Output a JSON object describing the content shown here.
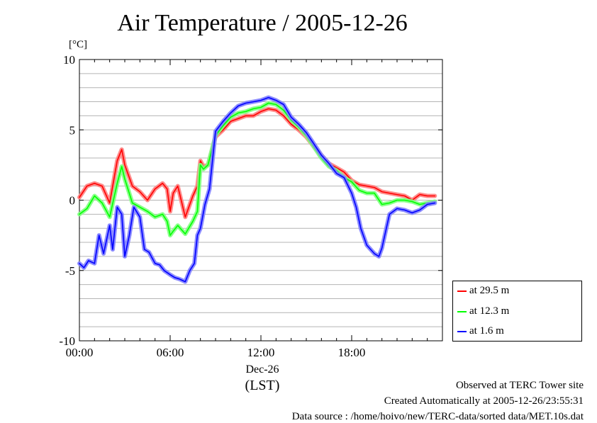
{
  "chart_data": {
    "type": "line",
    "title": "Air Temperature / 2005-12-26",
    "ylabel": "[°C]",
    "xlabel": "(LST)",
    "date_label": "Dec-26",
    "xlim": [
      0,
      24
    ],
    "ylim": [
      -10,
      10
    ],
    "y_ticks": [
      "10",
      "5",
      "0",
      "-5",
      "-10"
    ],
    "y_tick_values": [
      10,
      5,
      0,
      -5,
      -10
    ],
    "x_ticks": [
      "00:00",
      "06:00",
      "12:00",
      "18:00"
    ],
    "x_tick_values": [
      0,
      6,
      12,
      18
    ],
    "grid": true,
    "legend_position": "lower-right outside",
    "series": [
      {
        "name": "at 29.5 m",
        "color": "#ff0000",
        "x": [
          0,
          0.5,
          1,
          1.5,
          2,
          2.5,
          2.8,
          3,
          3.5,
          4,
          4.5,
          5,
          5.5,
          5.8,
          6,
          6.2,
          6.5,
          7,
          7.5,
          7.8,
          8,
          8.2,
          8.5,
          9,
          9.5,
          10,
          10.5,
          11,
          11.5,
          12,
          12.5,
          13,
          13.5,
          14,
          14.5,
          15,
          15.5,
          16,
          16.5,
          17,
          17.5,
          18,
          18.5,
          19,
          19.5,
          20,
          20.5,
          21,
          21.5,
          22,
          22.5,
          23,
          23.5
        ],
        "y": [
          0.2,
          1.0,
          1.2,
          1.0,
          -0.2,
          2.8,
          3.6,
          2.5,
          1.0,
          0.6,
          0.0,
          0.8,
          1.2,
          0.8,
          -0.8,
          0.5,
          1.0,
          -1.2,
          0.3,
          1.0,
          2.8,
          2.4,
          2.5,
          4.5,
          5.0,
          5.6,
          5.8,
          6.0,
          6.0,
          6.3,
          6.5,
          6.4,
          6.0,
          5.4,
          5.0,
          4.5,
          3.8,
          3.2,
          2.6,
          2.3,
          2.0,
          1.4,
          1.1,
          1.0,
          0.9,
          0.6,
          0.5,
          0.4,
          0.3,
          0.0,
          0.4,
          0.3,
          0.3
        ]
      },
      {
        "name": "at 12.3 m",
        "color": "#00ff00",
        "x": [
          0,
          0.5,
          1,
          1.5,
          2,
          2.5,
          2.8,
          3,
          3.5,
          4,
          4.5,
          5,
          5.5,
          5.8,
          6,
          6.2,
          6.5,
          7,
          7.5,
          7.8,
          8,
          8.2,
          8.5,
          9,
          9.5,
          10,
          10.5,
          11,
          11.5,
          12,
          12.5,
          13,
          13.5,
          14,
          14.5,
          15,
          15.5,
          16,
          16.5,
          17,
          17.5,
          18,
          18.5,
          19,
          19.5,
          20,
          20.5,
          21,
          21.5,
          22,
          22.5,
          23,
          23.5
        ],
        "y": [
          -1.0,
          -0.6,
          0.3,
          -0.2,
          -1.2,
          1.2,
          2.4,
          1.5,
          -0.2,
          -0.5,
          -0.8,
          -1.2,
          -1.0,
          -1.5,
          -2.5,
          -2.2,
          -1.8,
          -2.4,
          -1.5,
          -0.8,
          2.5,
          2.2,
          2.5,
          4.6,
          5.3,
          5.9,
          6.2,
          6.3,
          6.5,
          6.6,
          6.9,
          6.8,
          6.4,
          5.7,
          5.2,
          4.6,
          3.8,
          3.0,
          2.4,
          2.1,
          1.6,
          1.3,
          0.7,
          0.5,
          0.5,
          -0.3,
          -0.2,
          0.0,
          0.0,
          -0.1,
          -0.3,
          -0.2,
          -0.1
        ]
      },
      {
        "name": "at 1.6 m",
        "color": "#0000ff",
        "x": [
          0,
          0.3,
          0.6,
          1,
          1.3,
          1.6,
          2,
          2.2,
          2.5,
          2.8,
          3,
          3.3,
          3.6,
          4,
          4.3,
          4.6,
          5,
          5.3,
          5.6,
          6,
          6.3,
          6.6,
          7,
          7.3,
          7.6,
          7.8,
          8,
          8.3,
          8.6,
          9,
          9.5,
          10,
          10.5,
          11,
          11.5,
          12,
          12.5,
          13,
          13.5,
          14,
          14.5,
          15,
          15.5,
          16,
          16.5,
          17,
          17.5,
          18,
          18.3,
          18.6,
          19,
          19.5,
          19.8,
          20,
          20.5,
          21,
          21.5,
          22,
          22.5,
          23,
          23.5
        ],
        "y": [
          -4.5,
          -4.8,
          -4.3,
          -4.5,
          -2.5,
          -3.8,
          -1.8,
          -3.5,
          -0.5,
          -1.0,
          -4.0,
          -2.5,
          -0.5,
          -1.2,
          -3.5,
          -3.7,
          -4.5,
          -4.6,
          -5.0,
          -5.3,
          -5.5,
          -5.6,
          -5.8,
          -5.0,
          -4.5,
          -2.5,
          -2.0,
          -0.3,
          0.8,
          4.9,
          5.6,
          6.2,
          6.7,
          6.9,
          7.0,
          7.1,
          7.3,
          7.1,
          6.8,
          5.9,
          5.4,
          4.8,
          4.0,
          3.2,
          2.6,
          1.9,
          1.6,
          0.5,
          -0.5,
          -2.0,
          -3.2,
          -3.8,
          -4.0,
          -3.4,
          -1.0,
          -0.6,
          -0.7,
          -0.9,
          -0.7,
          -0.3,
          -0.2
        ]
      }
    ]
  },
  "footer": {
    "line1": "Observed at TERC Tower site",
    "line2": "Created Automatically at 2005-12-26/23:55:31",
    "line3": "Data source : /home/hoivo/new/TERC-data/sorted  data/MET.10s.dat"
  }
}
